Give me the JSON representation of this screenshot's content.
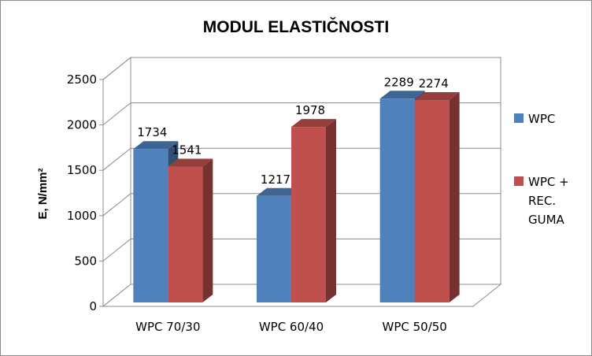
{
  "chart_data": {
    "type": "bar",
    "title": "MODUL ELASTIČNOSTI",
    "ylabel": "E, N/mm²",
    "xlabel": "",
    "categories": [
      "WPC 70/30",
      "WPC 60/40",
      "WPC 50/50"
    ],
    "ylim": [
      0,
      2500
    ],
    "yticks": [
      0,
      500,
      1000,
      1500,
      2000,
      2500
    ],
    "grid": true,
    "three_d": true,
    "legend_position": "right",
    "series": [
      {
        "name": "WPC",
        "values": [
          1734,
          1217,
          2289
        ],
        "color": "#4f81bd"
      },
      {
        "name": "WPC + REC. GUMA",
        "legend_lines": [
          "WPC +",
          "REC.",
          "GUMA"
        ],
        "values": [
          1541,
          1978,
          2274
        ],
        "color": "#c0504d"
      }
    ]
  }
}
